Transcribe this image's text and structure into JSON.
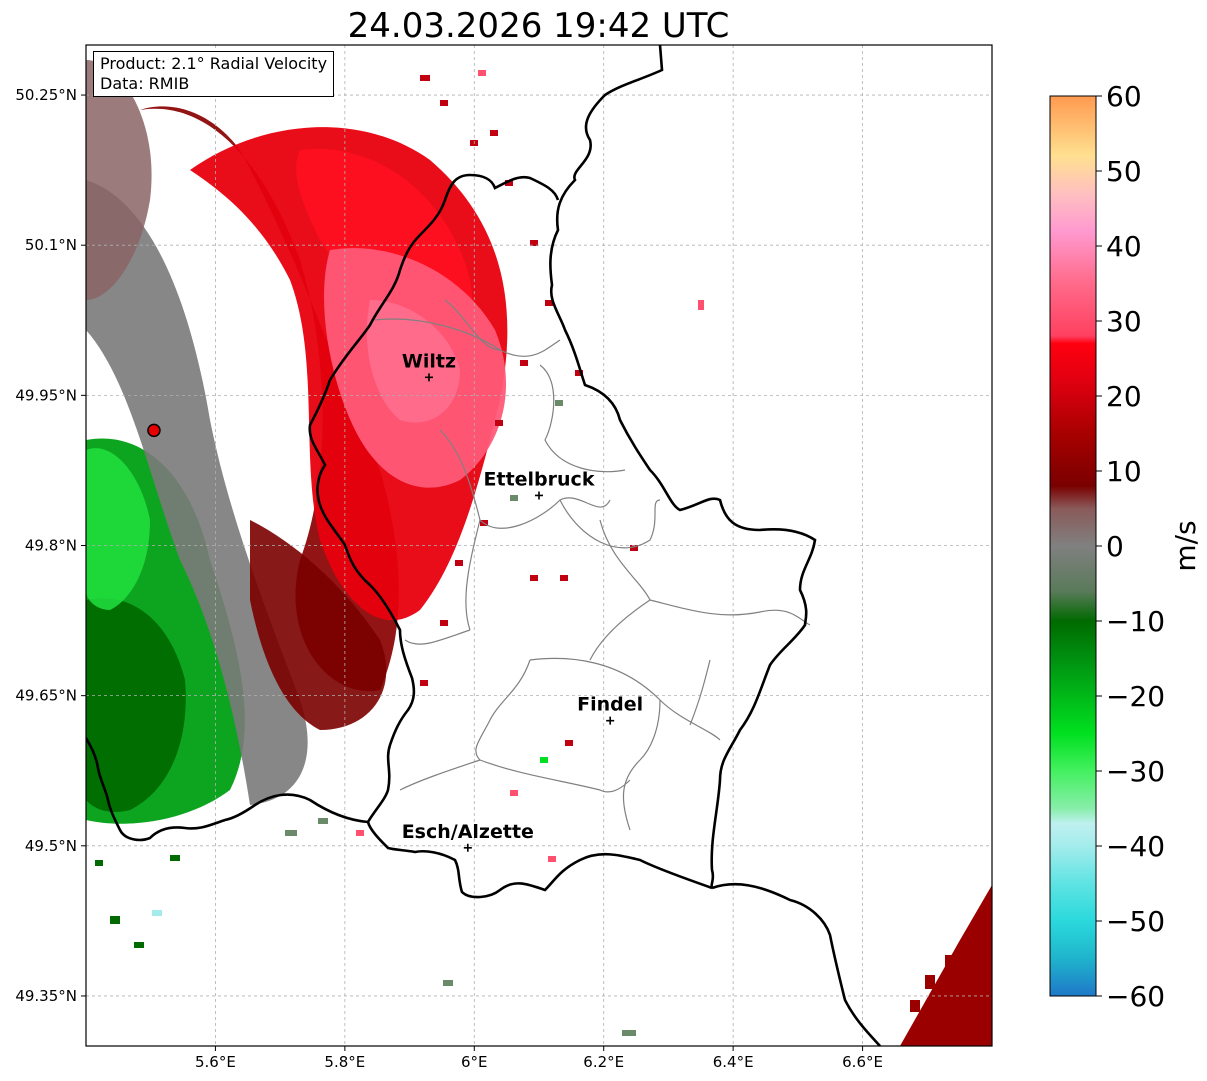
{
  "title": "24.03.2026 19:42 UTC",
  "info": {
    "product": "Product: 2.1° Radial Velocity",
    "data": "Data: RMIB"
  },
  "map": {
    "lon_range": [
      5.4,
      6.8
    ],
    "lat_range": [
      49.3,
      50.3
    ],
    "lon_ticks": [
      "5.6°E",
      "5.8°E",
      "6°E",
      "6.2°E",
      "6.4°E",
      "6.6°E"
    ],
    "lat_ticks": [
      "50.25°N",
      "50.1°N",
      "49.95°N",
      "49.8°N",
      "49.65°N",
      "49.5°N",
      "49.35°N"
    ],
    "grid": "dashed"
  },
  "cities": [
    {
      "name": "Wiltz",
      "lon": 5.93,
      "lat": 49.968
    },
    {
      "name": "Ettelbruck",
      "lon": 6.1,
      "lat": 49.85
    },
    {
      "name": "Findel",
      "lon": 6.21,
      "lat": 49.625
    },
    {
      "name": "Esch/Alzette",
      "lon": 5.99,
      "lat": 49.498
    }
  ],
  "radar_site": {
    "lon": 5.505,
    "lat": 49.915,
    "color": "#e60000"
  },
  "colorbar": {
    "label": "m/s",
    "min": -60,
    "max": 60,
    "ticks": [
      "60",
      "50",
      "40",
      "30",
      "20",
      "10",
      "0",
      "−10",
      "−20",
      "−30",
      "−40",
      "−50",
      "−60"
    ],
    "stops": [
      {
        "v": -60,
        "c": "#1f78c8"
      },
      {
        "v": -55,
        "c": "#1fb4cc"
      },
      {
        "v": -50,
        "c": "#2ad9dc"
      },
      {
        "v": -45,
        "c": "#5fe3e3"
      },
      {
        "v": -40,
        "c": "#a4ecec"
      },
      {
        "v": -37,
        "c": "#bff0f0"
      },
      {
        "v": -35,
        "c": "#88eeaa"
      },
      {
        "v": -30,
        "c": "#44f060"
      },
      {
        "v": -25,
        "c": "#00e020"
      },
      {
        "v": -20,
        "c": "#00b818"
      },
      {
        "v": -15,
        "c": "#009010"
      },
      {
        "v": -10,
        "c": "#006a00"
      },
      {
        "v": -6,
        "c": "#5a7a5a"
      },
      {
        "v": 0,
        "c": "#808080"
      },
      {
        "v": 5,
        "c": "#8a5a5a"
      },
      {
        "v": 8,
        "c": "#7a0000"
      },
      {
        "v": 15,
        "c": "#a80000"
      },
      {
        "v": 22,
        "c": "#e00010"
      },
      {
        "v": 27,
        "c": "#ff0010"
      },
      {
        "v": 28,
        "c": "#ff4060"
      },
      {
        "v": 35,
        "c": "#ff6a8a"
      },
      {
        "v": 42,
        "c": "#ff9ad0"
      },
      {
        "v": 47,
        "c": "#ffc0c0"
      },
      {
        "v": 52,
        "c": "#ffe090"
      },
      {
        "v": 60,
        "c": "#ff9a50"
      }
    ]
  }
}
